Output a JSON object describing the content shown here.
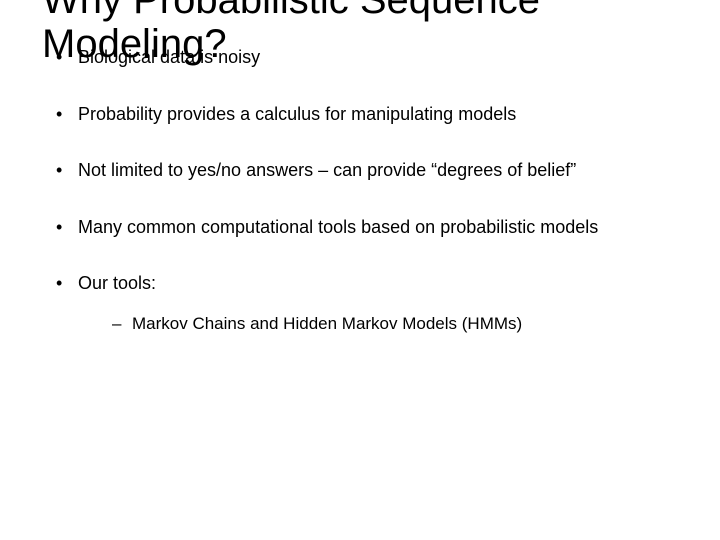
{
  "title": "Why Probabilistic Sequence\nModeling?",
  "bullets": {
    "b0": "Biological data is noisy",
    "b1": "Probability provides a calculus for manipulating models",
    "b2": "Not limited to yes/no answers – can provide “degrees of belief”",
    "b3": "Many common computational tools based on probabilistic models",
    "b4": "Our tools:",
    "sub0": "Markov Chains and Hidden Markov Models (HMMs)"
  },
  "colors": {
    "background": "#ffffff",
    "text": "#000000"
  },
  "fonts": {
    "title_size_pt": 40,
    "body_size_pt": 18,
    "sub_size_pt": 17,
    "family": "Arial"
  }
}
